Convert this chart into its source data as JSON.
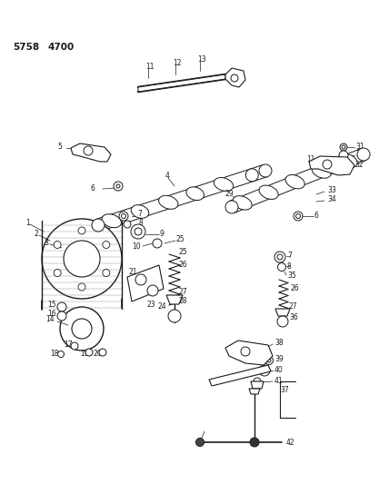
{
  "background_color": "#ffffff",
  "line_color": "#1a1a1a",
  "figsize": [
    4.28,
    5.33
  ],
  "dpi": 100,
  "header": "5758   4700"
}
